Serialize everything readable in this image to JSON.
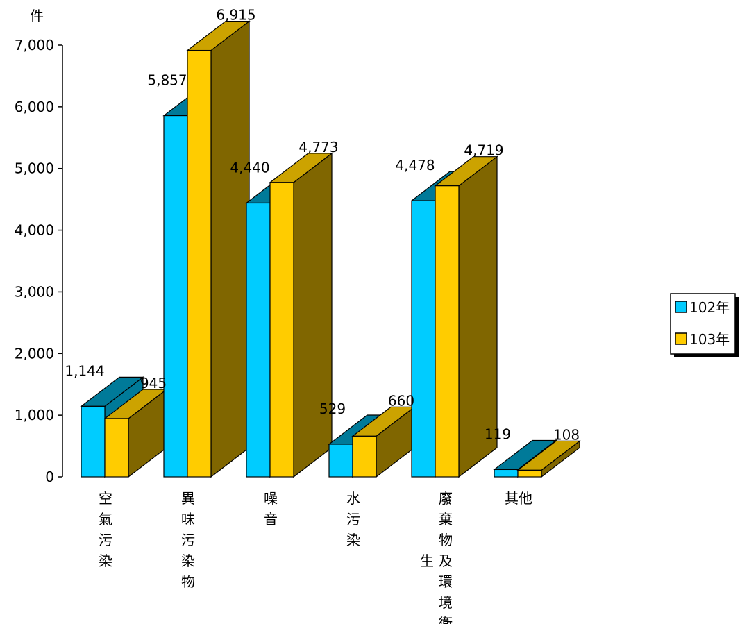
{
  "chart_data": {
    "type": "bar",
    "unit_label": "件",
    "categories": [
      "空氣污染",
      "異味污染物",
      "噪音",
      "水污染",
      "廢棄物及環境衛生",
      "其他"
    ],
    "y_ticks": [
      {
        "value": 0,
        "label": "0"
      },
      {
        "value": 1000,
        "label": "1,000"
      },
      {
        "value": 2000,
        "label": "2,000"
      },
      {
        "value": 3000,
        "label": "3,000"
      },
      {
        "value": 4000,
        "label": "4,000"
      },
      {
        "value": 5000,
        "label": "5,000"
      },
      {
        "value": 6000,
        "label": "6,000"
      },
      {
        "value": 7000,
        "label": "7,000"
      }
    ],
    "ylim": [
      0,
      7000
    ],
    "grid": false,
    "legend_position": "right",
    "series": [
      {
        "name": "102年",
        "color": "#00CCFF",
        "values": [
          1144,
          5857,
          4440,
          529,
          4478,
          119
        ],
        "labels": [
          "1,144",
          "5,857",
          "4,440",
          "529",
          "4,478",
          "119"
        ]
      },
      {
        "name": "103年",
        "color": "#FFCC00",
        "values": [
          945,
          6915,
          4773,
          660,
          4719,
          108
        ],
        "labels": [
          "945",
          "6,915",
          "4,773",
          "660",
          "4,719",
          "108"
        ]
      }
    ]
  }
}
